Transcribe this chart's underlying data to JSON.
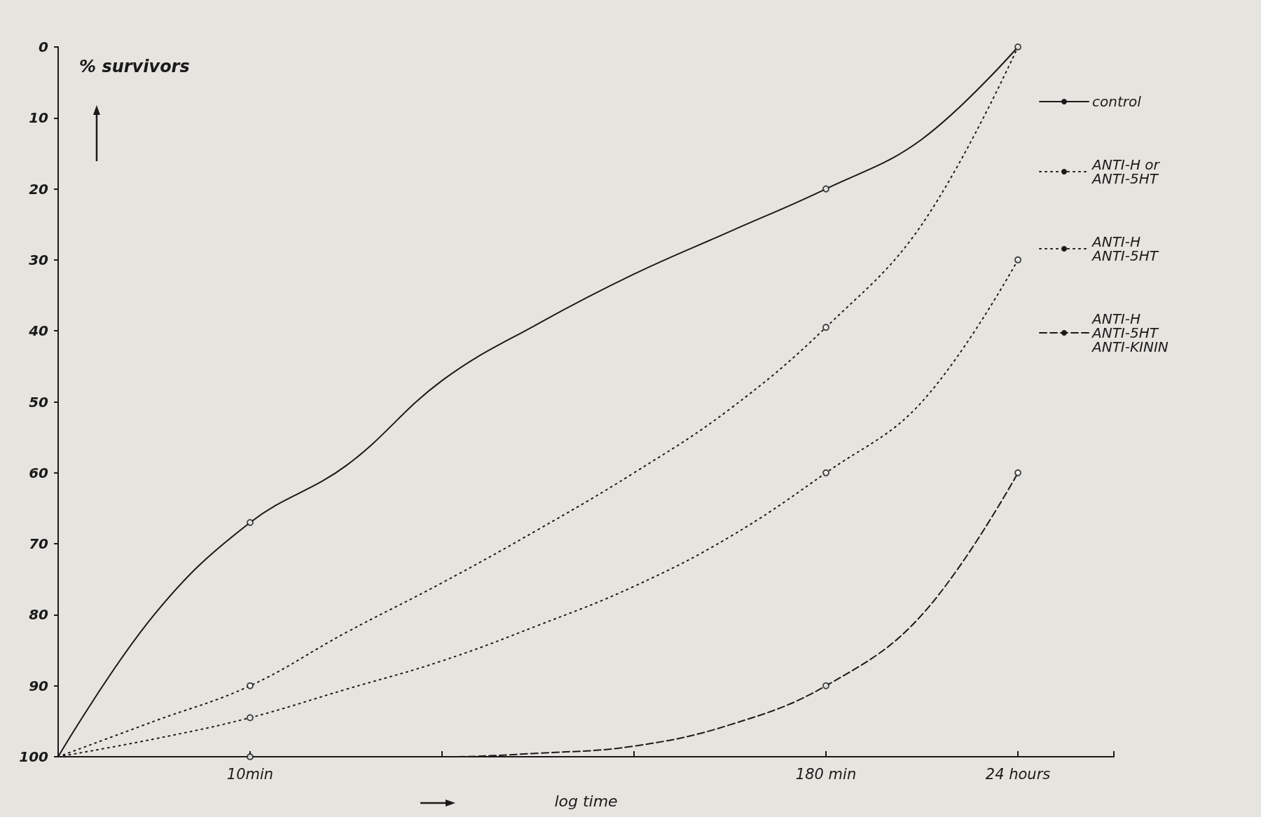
{
  "chart_data": {
    "type": "line",
    "xlabel": "log time",
    "ylabel": "% survivors",
    "categories": [
      null,
      null,
      "10min",
      null,
      null,
      null,
      null,
      null,
      "180 min",
      null,
      "24 hours",
      null
    ],
    "ylim": [
      100,
      0
    ],
    "yticks": [
      0,
      10,
      20,
      30,
      40,
      50,
      60,
      70,
      80,
      90,
      100
    ],
    "series": [
      {
        "name": "control",
        "color": "#1a1a1a",
        "line_style": "solid",
        "values": [
          100,
          80,
          67,
          59,
          47,
          39,
          32,
          26,
          20,
          13,
          0,
          null
        ]
      },
      {
        "name": "ANTI-H or\nANTI-5HT",
        "color": "#1a1a1a",
        "line_style": "dotted",
        "values": [
          100,
          95,
          90,
          82.5,
          75.5,
          68,
          60,
          51,
          39.5,
          25,
          0,
          null
        ]
      },
      {
        "name": "ANTI-H\nANTI-5HT",
        "color": "#1a1a1a",
        "line_style": "dotted",
        "values": [
          100,
          97.5,
          94.5,
          90.5,
          86.5,
          81.5,
          76,
          69,
          60,
          50,
          30,
          null
        ]
      },
      {
        "name": "ANTI-H\nANTI-5HT\nANTI-KININ",
        "color": "#1a1a1a",
        "line_style": "dashed",
        "values": [
          100,
          100,
          100,
          100,
          100,
          99.5,
          98.5,
          95.5,
          90,
          80,
          60,
          null
        ]
      },
      {
        "type": "scatter",
        "marker": "circle",
        "color": "#1a1a1a",
        "x": [
          "10min",
          "10min",
          "10min",
          "10min",
          "180 min",
          "180 min",
          "180 min",
          "180 min",
          "24 hours",
          "24 hours",
          "24 hours"
        ],
        "values": [
          67,
          90,
          94.5,
          100,
          20,
          39.5,
          60,
          90,
          0,
          30,
          60
        ]
      }
    ],
    "marker": "none",
    "grid": false,
    "legend": "right"
  }
}
